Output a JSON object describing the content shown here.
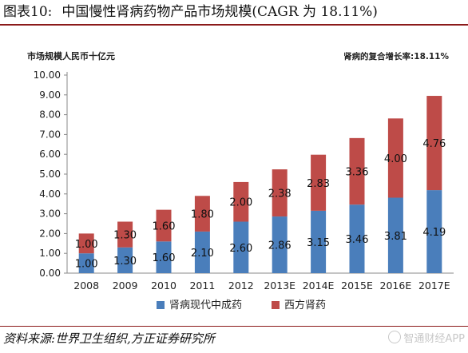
{
  "header": {
    "figure_number": "图表10:",
    "title": "中国慢性肾病药物产品市场规模(CAGR 为 18.11%)"
  },
  "footer": {
    "source": "资料来源:世界卫生组织,方正证券研究所",
    "watermark": "智通财经APP"
  },
  "colors": {
    "series_a": "#4a7ebb",
    "series_b": "#be4b48",
    "rule": "#8b1a1a"
  },
  "chart_data": {
    "type": "bar",
    "stacked": true,
    "title": "市场规模人民币十亿元",
    "annotation": "肾病的复合增长率:18.11%",
    "categories": [
      "2008",
      "2009",
      "2010",
      "2011",
      "2012",
      "2013E",
      "2014E",
      "2015E",
      "2016E",
      "2017E"
    ],
    "series": [
      {
        "name": "肾病现代中成药",
        "values": [
          1.0,
          1.3,
          1.6,
          2.1,
          2.6,
          2.86,
          3.15,
          3.46,
          3.81,
          4.19
        ]
      },
      {
        "name": "西方肾药",
        "values": [
          1.0,
          1.3,
          1.6,
          1.8,
          2.0,
          2.38,
          2.83,
          3.36,
          4.0,
          4.76
        ]
      }
    ],
    "ylim": [
      0,
      10
    ],
    "yticks": [
      "0.00",
      "1.00",
      "2.00",
      "3.00",
      "4.00",
      "5.00",
      "6.00",
      "7.00",
      "8.00",
      "9.00",
      "10.00"
    ],
    "grid": false,
    "legend": "bottom"
  }
}
